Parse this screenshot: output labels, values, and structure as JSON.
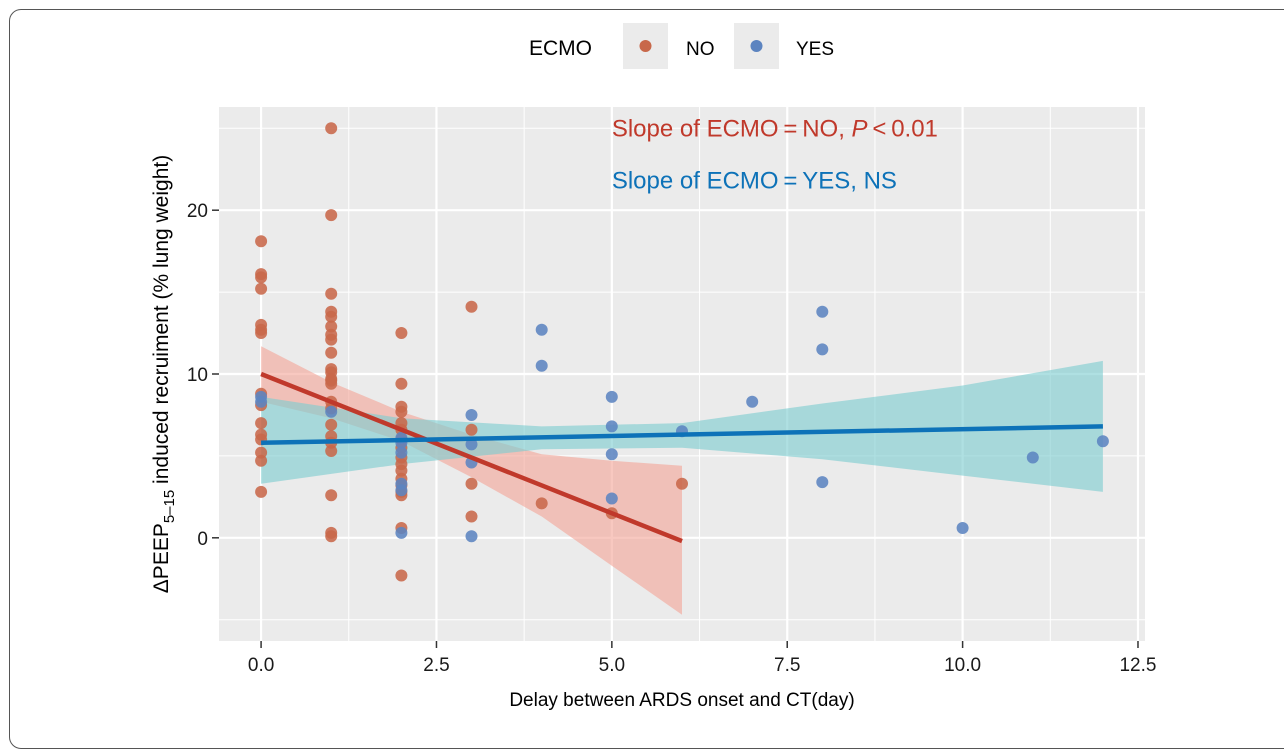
{
  "chart_data": {
    "type": "scatter",
    "title": "",
    "xlabel": "Delay between ARDS onset and CT(day)",
    "ylabel": {
      "prefix": "ΔPEEP",
      "subscript": "5–15",
      "suffix": " induced recruiment (% lung weight)"
    },
    "xlim": [
      -0.6,
      12.6
    ],
    "ylim": [
      -6.3,
      26.3
    ],
    "xticks": [
      0,
      2.5,
      5,
      7.5,
      10,
      12.5
    ],
    "xtick_labels": [
      "0.0",
      "2.5",
      "5.0",
      "7.5",
      "10.0",
      "12.5"
    ],
    "yticks": [
      0,
      10,
      20
    ],
    "ytick_labels": [
      "0",
      "10",
      "20"
    ],
    "grid": true,
    "legend": {
      "title": "ECMO",
      "placement": "top",
      "entries": [
        "NO",
        "YES"
      ]
    },
    "colors": {
      "NO_point": "#c8684a",
      "YES_point": "#5c84c0",
      "NO_line": "#c0392b",
      "YES_line": "#0d72b8",
      "NO_band": "#f4a79a",
      "YES_band": "#7ecdd1",
      "panel": "#ebebeb",
      "grid": "#ffffff"
    },
    "annotations": {
      "no": {
        "before": "Slope of ECMO = NO, ",
        "italic": "P",
        "after": " < 0.01",
        "at": [
          5.0,
          25.0
        ]
      },
      "yes": {
        "text": "Slope of ECMO = YES, NS",
        "at": [
          5.0,
          21.8
        ]
      }
    },
    "series": [
      {
        "name": "NO",
        "points": [
          [
            0,
            18.1
          ],
          [
            0,
            16.1
          ],
          [
            0,
            15.9
          ],
          [
            0,
            15.2
          ],
          [
            0,
            13.0
          ],
          [
            0,
            12.7
          ],
          [
            0,
            12.5
          ],
          [
            0,
            8.8
          ],
          [
            0,
            8.1
          ],
          [
            0,
            7.0
          ],
          [
            0,
            6.3
          ],
          [
            0,
            6.0
          ],
          [
            0,
            5.2
          ],
          [
            0,
            4.7
          ],
          [
            0,
            2.8
          ],
          [
            1,
            25.0
          ],
          [
            1,
            19.7
          ],
          [
            1,
            14.9
          ],
          [
            1,
            13.8
          ],
          [
            1,
            13.5
          ],
          [
            1,
            12.9
          ],
          [
            1,
            12.4
          ],
          [
            1,
            12.1
          ],
          [
            1,
            11.3
          ],
          [
            1,
            10.3
          ],
          [
            1,
            10.1
          ],
          [
            1,
            9.7
          ],
          [
            1,
            9.6
          ],
          [
            1,
            9.4
          ],
          [
            1,
            8.3
          ],
          [
            1,
            7.9
          ],
          [
            1,
            6.9
          ],
          [
            1,
            6.2
          ],
          [
            1,
            5.8
          ],
          [
            1,
            5.3
          ],
          [
            1,
            2.6
          ],
          [
            1,
            0.3
          ],
          [
            1,
            0.1
          ],
          [
            2,
            12.5
          ],
          [
            2,
            9.4
          ],
          [
            2,
            8.0
          ],
          [
            2,
            7.7
          ],
          [
            2,
            7.0
          ],
          [
            2,
            6.6
          ],
          [
            2,
            6.0
          ],
          [
            2,
            5.5
          ],
          [
            2,
            4.9
          ],
          [
            2,
            4.5
          ],
          [
            2,
            4.1
          ],
          [
            2,
            3.6
          ],
          [
            2,
            3.2
          ],
          [
            2,
            2.8
          ],
          [
            2,
            2.6
          ],
          [
            2,
            0.6
          ],
          [
            2,
            -2.3
          ],
          [
            3,
            14.1
          ],
          [
            3,
            6.6
          ],
          [
            3,
            3.3
          ],
          [
            3,
            1.3
          ],
          [
            4,
            2.1
          ],
          [
            5,
            1.5
          ],
          [
            6,
            3.3
          ]
        ],
        "fit": {
          "x": [
            0,
            6
          ],
          "y": [
            10.0,
            -0.2
          ]
        },
        "ci": {
          "x": [
            0,
            1,
            2,
            3,
            4,
            5,
            6
          ],
          "lower": [
            8.3,
            7.3,
            5.9,
            3.7,
            1.3,
            -1.7,
            -4.7
          ],
          "upper": [
            11.7,
            9.5,
            7.7,
            6.3,
            5.1,
            4.7,
            4.4
          ]
        }
      },
      {
        "name": "YES",
        "points": [
          [
            0,
            8.6
          ],
          [
            0,
            8.3
          ],
          [
            1,
            7.7
          ],
          [
            2,
            6.1
          ],
          [
            2,
            5.8
          ],
          [
            2,
            5.2
          ],
          [
            2,
            3.3
          ],
          [
            2,
            2.9
          ],
          [
            2,
            0.3
          ],
          [
            3,
            7.5
          ],
          [
            3,
            5.7
          ],
          [
            3,
            4.6
          ],
          [
            3,
            0.1
          ],
          [
            4,
            12.7
          ],
          [
            4,
            10.5
          ],
          [
            5,
            8.6
          ],
          [
            5,
            6.8
          ],
          [
            5,
            5.1
          ],
          [
            5,
            2.4
          ],
          [
            6,
            6.5
          ],
          [
            7,
            8.3
          ],
          [
            8,
            13.8
          ],
          [
            8,
            11.5
          ],
          [
            8,
            3.4
          ],
          [
            10,
            0.6
          ],
          [
            11,
            4.9
          ],
          [
            12,
            5.9
          ]
        ],
        "fit": {
          "x": [
            0,
            12
          ],
          "y": [
            5.8,
            6.8
          ]
        },
        "ci": {
          "x": [
            0,
            2,
            4,
            6,
            8,
            10,
            12
          ],
          "lower": [
            3.3,
            4.5,
            5.4,
            5.5,
            4.8,
            3.8,
            2.8
          ],
          "upper": [
            8.6,
            7.3,
            6.8,
            7.0,
            8.2,
            9.3,
            10.8
          ]
        }
      }
    ]
  }
}
